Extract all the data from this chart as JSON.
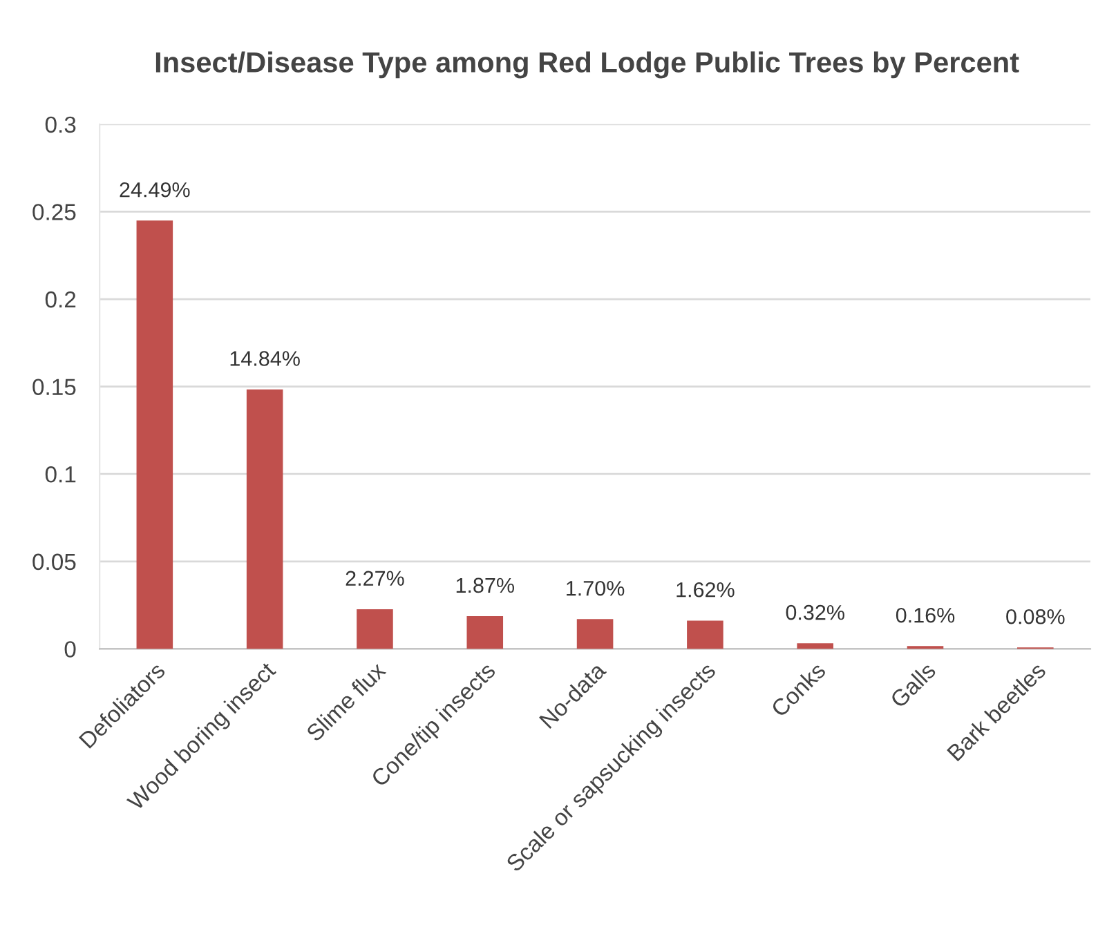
{
  "chart_data": {
    "type": "bar",
    "title": "Insect/Disease Type among Red Lodge Public Trees by Percent",
    "categories": [
      "Defoliators",
      "Wood boring insect",
      "Slime flux",
      "Cone/tip insects",
      "No-data",
      "Scale or sapsucking insects",
      "Conks",
      "Galls",
      "Bark beetles"
    ],
    "values": [
      0.2449,
      0.1484,
      0.0227,
      0.0187,
      0.017,
      0.0162,
      0.0032,
      0.0016,
      0.0008
    ],
    "value_labels": [
      "24.49%",
      "14.84%",
      "2.27%",
      "1.87%",
      "1.70%",
      "1.62%",
      "0.32%",
      "0.16%",
      "0.08%"
    ],
    "color": "#c0504d",
    "ylim": [
      0,
      0.3
    ],
    "yticks": [
      0,
      0.05,
      0.1,
      0.15,
      0.2,
      0.25,
      0.3
    ],
    "grid": "y"
  }
}
